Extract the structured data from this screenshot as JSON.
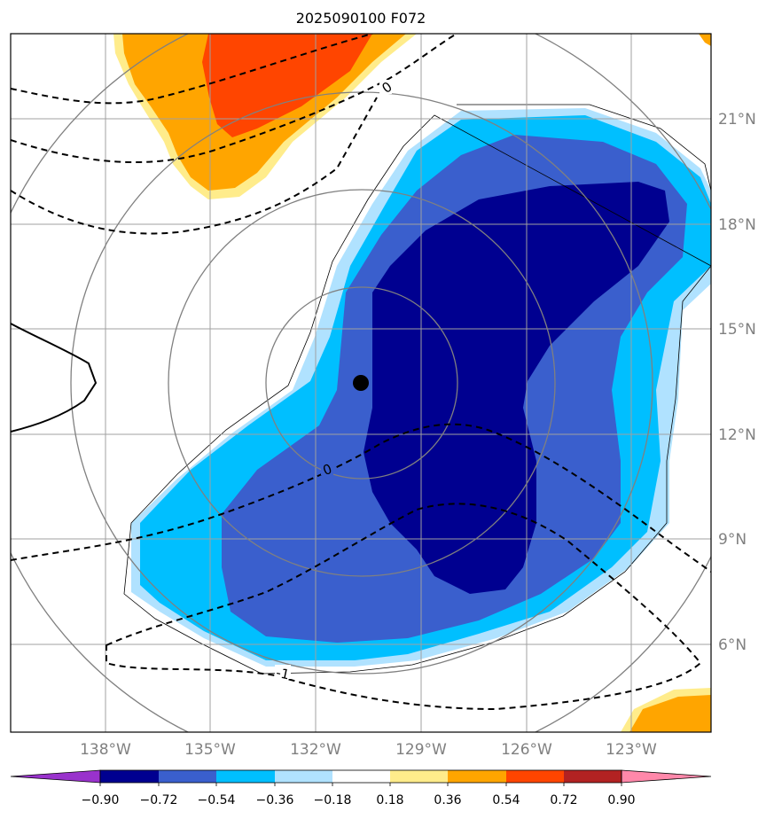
{
  "title": "2025090100 F072",
  "map": {
    "lat_labels": [
      "21°N",
      "18°N",
      "15°N",
      "12°N",
      "9°N",
      "6°N"
    ],
    "lon_labels": [
      "138°W",
      "135°W",
      "132°W",
      "129°W",
      "126°W",
      "123°W"
    ],
    "contour_labels": [
      "0",
      "0",
      "-1"
    ],
    "colors": {
      "c_neg90": "#000090",
      "c_neg72": "#3a5fcd",
      "c_neg54": "#00bfff",
      "c_neg36": "#b0e2ff",
      "c_pos36": "#ffec8b",
      "c_pos54": "#ffa500",
      "c_pos72": "#ff4500",
      "grid": "#a0a0a0",
      "rings": "#808080"
    }
  },
  "colorbar": {
    "ticks": [
      "−0.90",
      "−0.72",
      "−0.54",
      "−0.36",
      "−0.18",
      "0.18",
      "0.36",
      "0.54",
      "0.72",
      "0.90"
    ],
    "colors": [
      "#9932cc",
      "#000090",
      "#3a5fcd",
      "#00bfff",
      "#b0e2ff",
      "#ffffff",
      "#ffec8b",
      "#ffa500",
      "#ff4500",
      "#b22222",
      "#ff88aa"
    ]
  }
}
